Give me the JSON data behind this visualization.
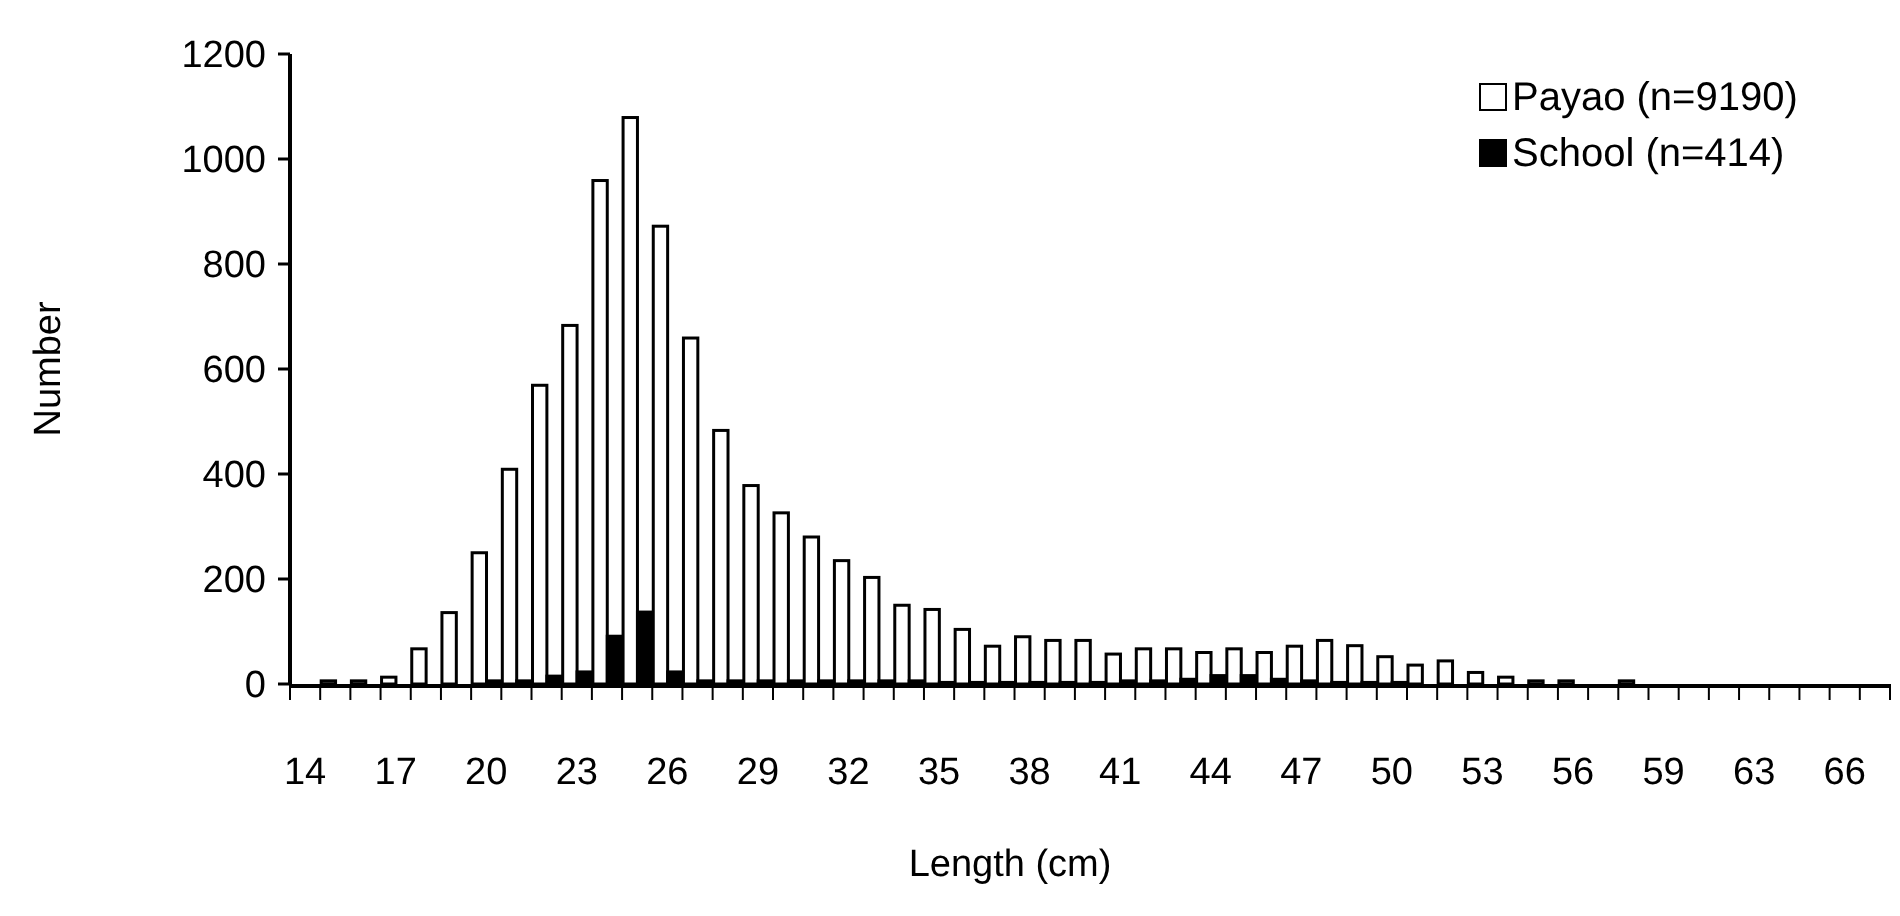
{
  "chart_data": {
    "type": "bar",
    "xlabel": "Length (cm)",
    "ylabel": "Number",
    "categories": [
      "14",
      null,
      null,
      "17",
      null,
      null,
      "20",
      null,
      null,
      "23",
      null,
      null,
      "26",
      null,
      null,
      "29",
      null,
      null,
      "32",
      null,
      null,
      "35",
      null,
      null,
      "38",
      null,
      null,
      "41",
      null,
      null,
      "44",
      null,
      null,
      "47",
      null,
      null,
      "50",
      null,
      null,
      "53",
      null,
      null,
      "56",
      null,
      null,
      "59",
      null,
      null,
      "63",
      null,
      null,
      "66",
      null
    ],
    "series": [
      {
        "name": "Payao (n=9190)",
        "color": "#ffffff",
        "values": [
          0,
          6,
          6,
          13,
          67,
          136,
          250,
          409,
          569,
          683,
          959,
          1079,
          872,
          659,
          483,
          378,
          326,
          280,
          235,
          203,
          150,
          142,
          104,
          72,
          90,
          83,
          83,
          57,
          67,
          67,
          60,
          67,
          60,
          72,
          83,
          73,
          52,
          36,
          44,
          22,
          13,
          6,
          6,
          0,
          6,
          0,
          0,
          0,
          0,
          0,
          0,
          0,
          0
        ]
      },
      {
        "name": "School (n=414)",
        "color": "#000000",
        "values": [
          0,
          0,
          0,
          0,
          0,
          0,
          6,
          6,
          15,
          23,
          91,
          137,
          23,
          6,
          6,
          6,
          6,
          6,
          6,
          6,
          6,
          3,
          3,
          3,
          3,
          3,
          3,
          6,
          6,
          9,
          16,
          16,
          9,
          6,
          3,
          3,
          3,
          0,
          0,
          0,
          0,
          0,
          0,
          0,
          0,
          0,
          0,
          0,
          0,
          0,
          0,
          0,
          0
        ]
      }
    ],
    "ylim": [
      0,
      1200
    ],
    "yticks": [
      0,
      200,
      400,
      600,
      800,
      1000,
      1200
    ],
    "grid": false,
    "legend": "top right"
  }
}
